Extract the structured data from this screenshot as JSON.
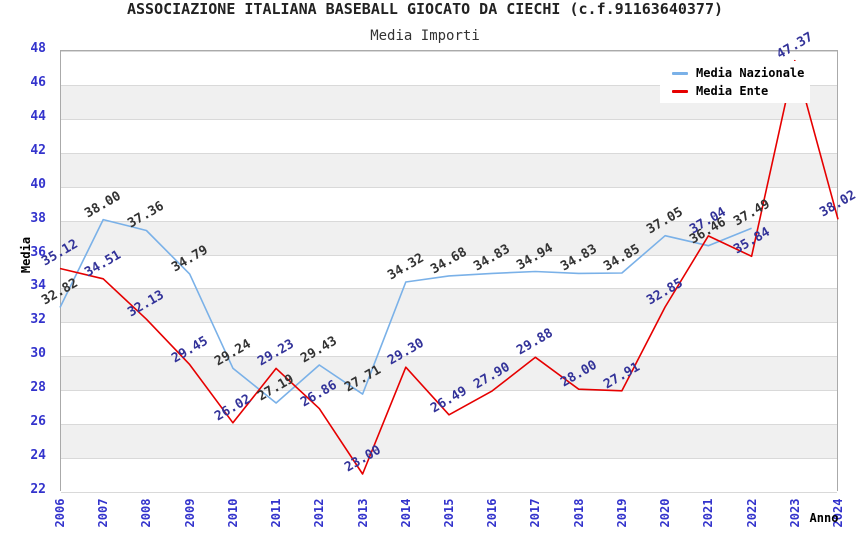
{
  "chart_data": {
    "type": "line",
    "title": "ASSOCIAZIONE ITALIANA BASEBALL GIOCATO DA CIECHI (c.f.91163640377)",
    "subtitle": "Media Importi",
    "xlabel": "Anno",
    "ylabel": "Media",
    "ylim": [
      22,
      48
    ],
    "ytick_step": 2,
    "categories": [
      "2006",
      "2007",
      "2008",
      "2009",
      "2010",
      "2011",
      "2012",
      "2013",
      "2014",
      "2015",
      "2016",
      "2017",
      "2018",
      "2019",
      "2020",
      "2021",
      "2022",
      "2023",
      "2024"
    ],
    "series": [
      {
        "name": "Media Nazionale",
        "color": "#7ab1e8",
        "label_color": "#333333",
        "values": [
          32.82,
          38.0,
          37.36,
          34.79,
          29.24,
          27.19,
          29.43,
          27.71,
          34.32,
          34.68,
          34.83,
          34.94,
          34.83,
          34.85,
          37.05,
          36.46,
          37.49,
          null,
          null
        ]
      },
      {
        "name": "Media Ente",
        "color": "#e60000",
        "label_color": "#333399",
        "values": [
          35.12,
          34.51,
          32.13,
          29.45,
          26.02,
          29.23,
          26.86,
          23.0,
          29.3,
          26.49,
          27.9,
          29.88,
          28.0,
          27.91,
          32.85,
          37.04,
          35.84,
          47.37,
          38.02
        ]
      }
    ],
    "legend_position": "top-right",
    "grid": "horizontal-bands",
    "band_color": "#f0f0f0",
    "gridline_color": "#d9d9d9",
    "plot_border_color": "#aaaaaa",
    "axis_tick_color": "#3333cc"
  }
}
